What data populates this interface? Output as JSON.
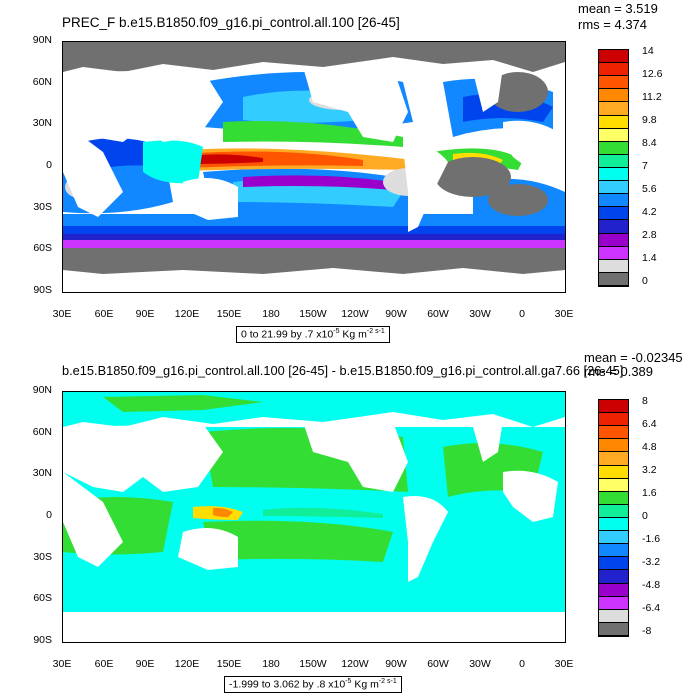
{
  "panels": [
    {
      "title": "PREC_F b.e15.B1850.f09_g16.pi_control.all.100 [26-45]",
      "mean_text": "mean = 3.519",
      "rms_text": "rms = 4.374",
      "range_text": "0 to 21.99 by .7 x10",
      "range_exp": "-5",
      "range_units": " Kg m",
      "range_units_exp": "-2 s-1",
      "colorbar": {
        "labels": [
          "14",
          "12.6",
          "11.2",
          "9.8",
          "8.4",
          "7",
          "5.6",
          "4.2",
          "2.8",
          "1.4",
          "0"
        ],
        "colors": [
          "#cc0000",
          "#ee2200",
          "#ff5500",
          "#ff8800",
          "#ffaa22",
          "#ffdd00",
          "#ffff66",
          "#33dd33",
          "#11ee99",
          "#00ffee",
          "#33ccff",
          "#1188ff",
          "#0044ee",
          "#2222cc",
          "#9900cc",
          "#cc33ff",
          "#dddddd",
          "#707070"
        ]
      }
    },
    {
      "title": "b.e15.B1850.f09_g16.pi_control.all.100 [26-45] - b.e15.B1850.f09_g16.pi_control.all.ga7.66 [26-45]",
      "mean_text": "mean = -0.02345",
      "rms_text": "rms = 0.389",
      "range_text": "-1.999 to 3.062 by .8 x10",
      "range_exp": "-5",
      "range_units": " Kg m",
      "range_units_exp": "-2 s-1",
      "colorbar": {
        "labels": [
          "8",
          "6.4",
          "4.8",
          "3.2",
          "1.6",
          "0",
          "-1.6",
          "-3.2",
          "-4.8",
          "-6.4",
          "-8"
        ],
        "colors": [
          "#cc0000",
          "#ee2200",
          "#ff5500",
          "#ff8800",
          "#ffaa22",
          "#ffdd00",
          "#ffff66",
          "#33dd33",
          "#11ee99",
          "#00ffee",
          "#33ccff",
          "#1188ff",
          "#0044ee",
          "#2222cc",
          "#9900cc",
          "#cc33ff",
          "#dddddd",
          "#707070"
        ]
      }
    }
  ],
  "lat_labels": [
    "90N",
    "60N",
    "30N",
    "0",
    "30S",
    "60S",
    "90S"
  ],
  "lon_labels": [
    "30E",
    "60E",
    "90E",
    "120E",
    "150E",
    "180",
    "150W",
    "120W",
    "90W",
    "60W",
    "30W",
    "0",
    "30E"
  ]
}
